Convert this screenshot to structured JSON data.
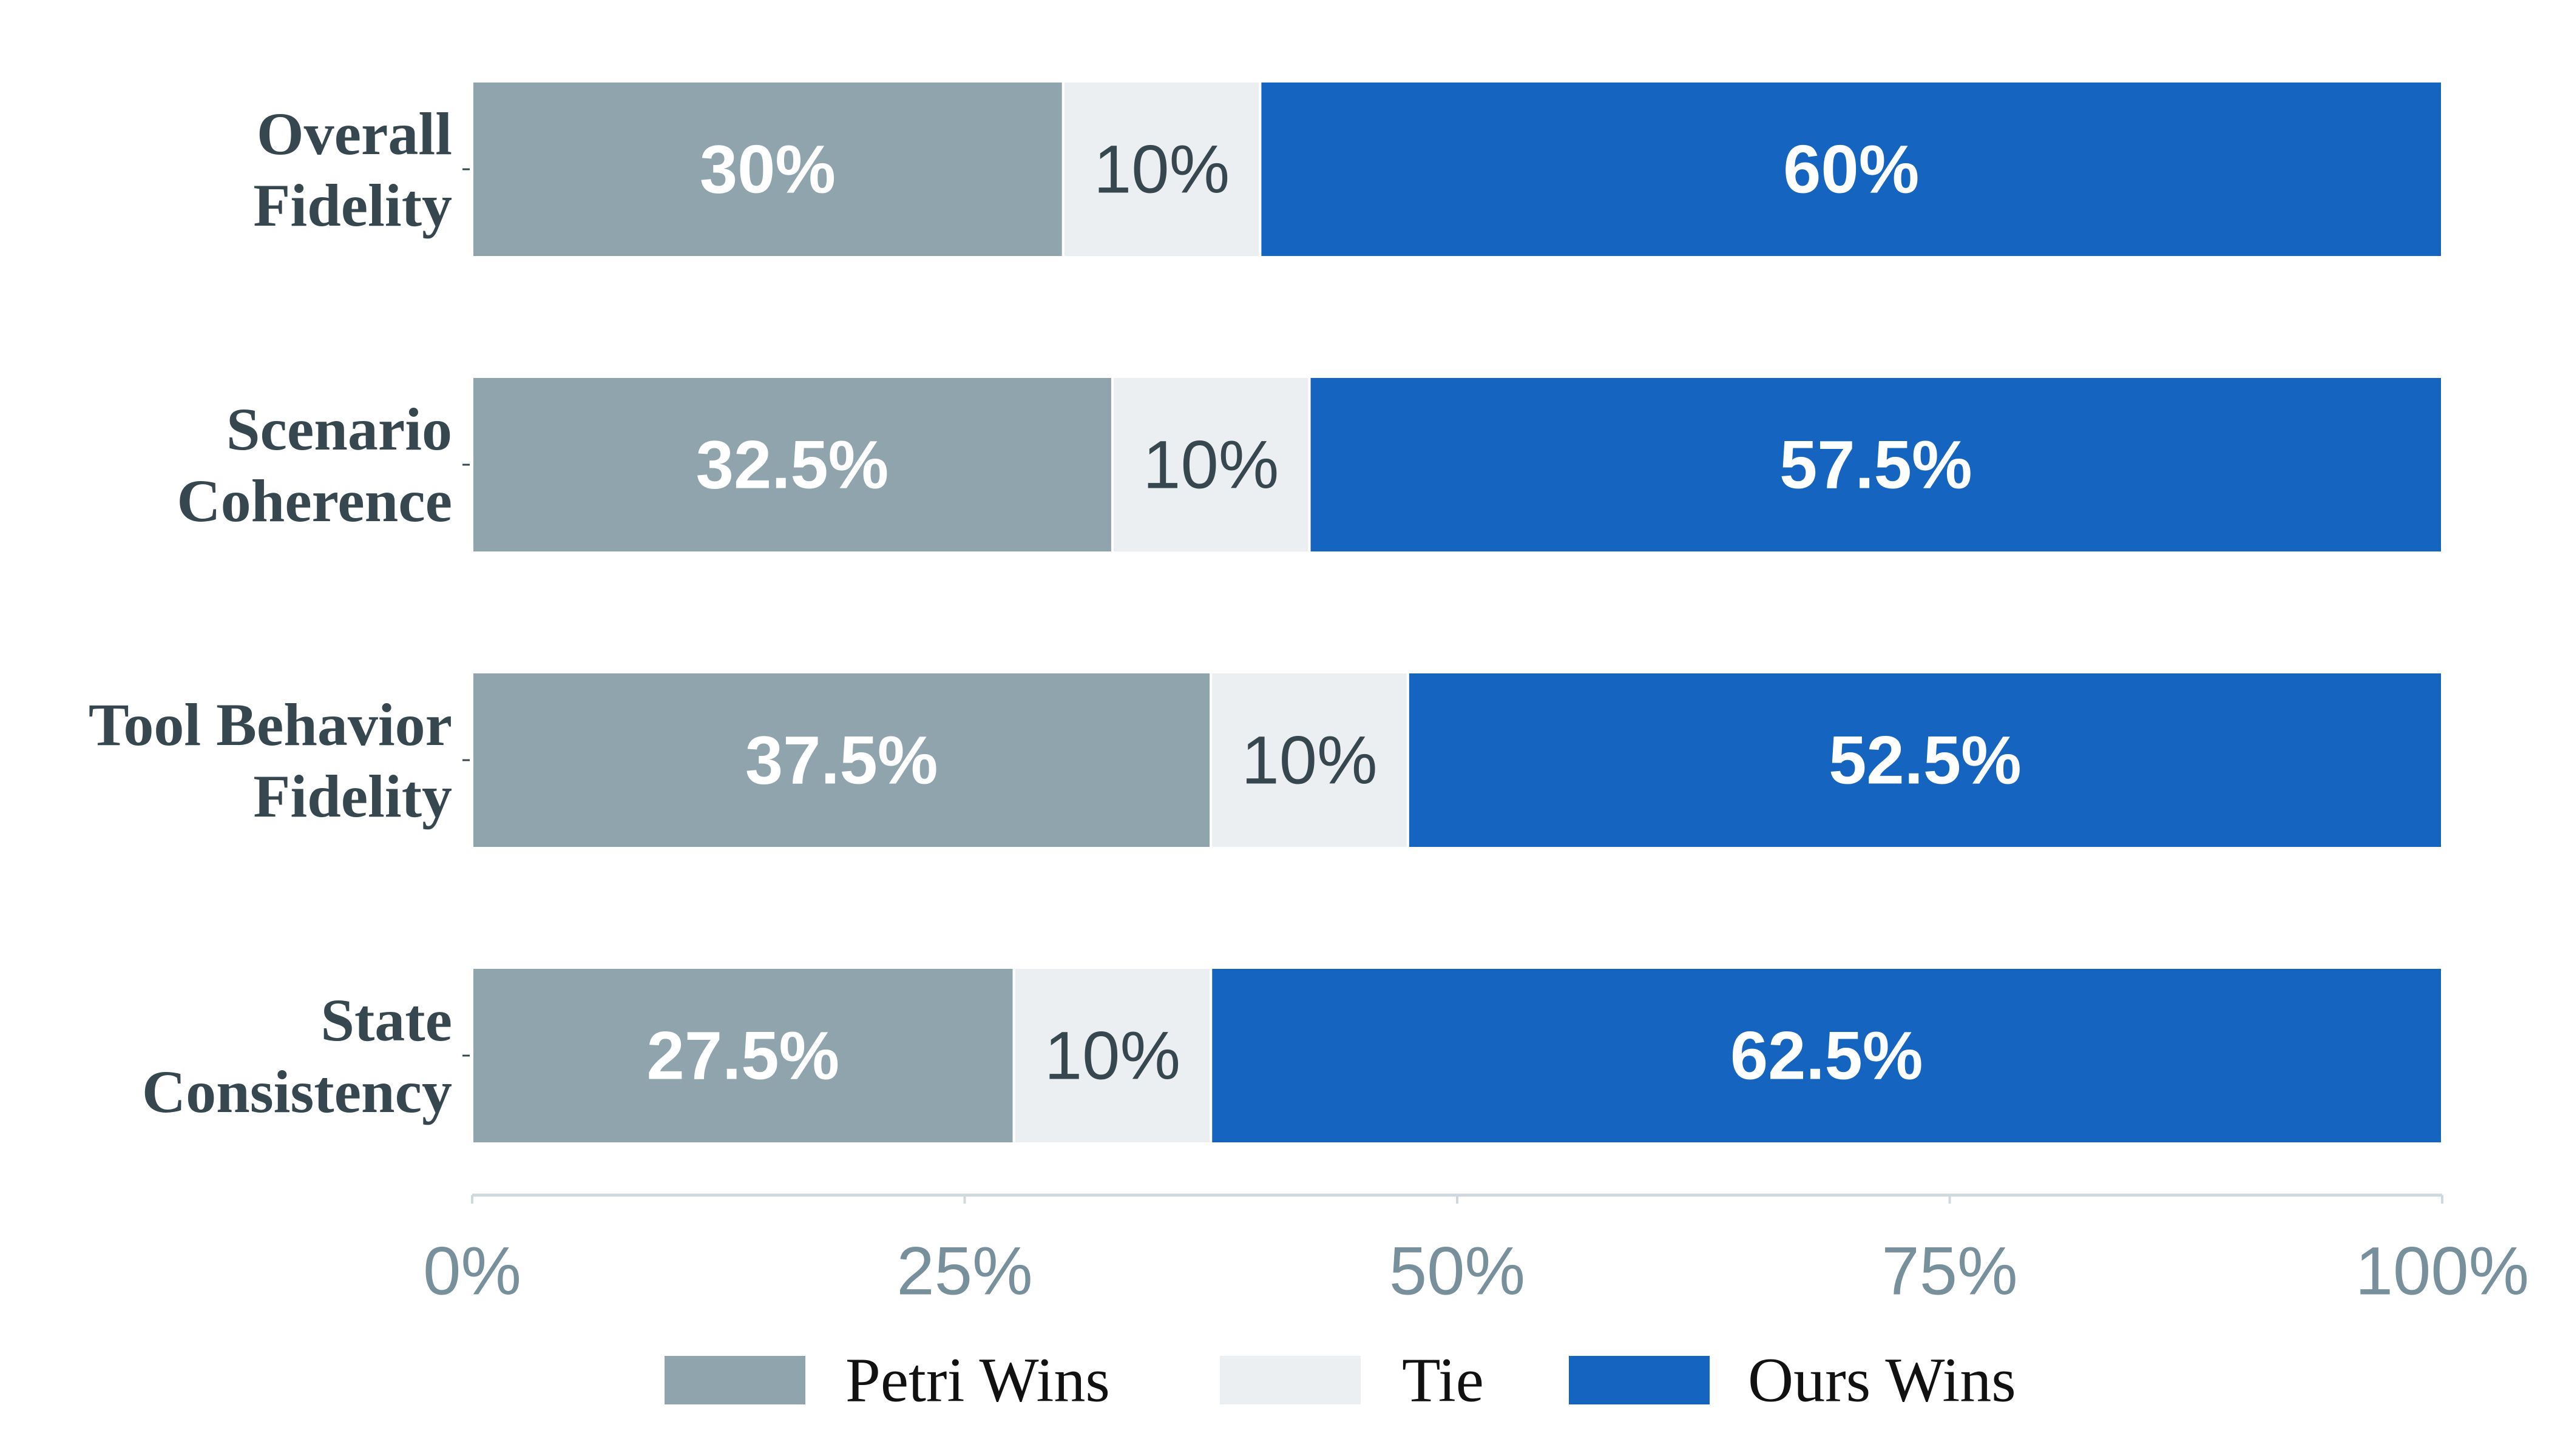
{
  "chart_data": {
    "type": "bar",
    "orientation": "horizontal",
    "stacked": true,
    "categories": [
      [
        "Overall",
        "Fidelity"
      ],
      [
        "Scenario",
        "Coherence"
      ],
      [
        "Tool Behavior",
        "Fidelity"
      ],
      [
        "State",
        "Consistency"
      ]
    ],
    "series": [
      {
        "name": "Petri Wins",
        "color": "#90A4AE",
        "label_color": "#ffffff",
        "label_weight": "bold",
        "values": [
          30,
          32.5,
          37.5,
          27.5
        ],
        "labels": [
          "30%",
          "32.5%",
          "37.5%",
          "27.5%"
        ]
      },
      {
        "name": "Tie",
        "color": "#ECEFF1",
        "label_color": "#37474F",
        "label_weight": "normal",
        "values": [
          10,
          10,
          10,
          10
        ],
        "labels": [
          "10%",
          "10%",
          "10%",
          "10%"
        ]
      },
      {
        "name": "Ours Wins",
        "color": "#1565C0",
        "label_color": "#ffffff",
        "label_weight": "bold",
        "values": [
          60,
          57.5,
          52.5,
          62.5
        ],
        "labels": [
          "60%",
          "57.5%",
          "52.5%",
          "62.5%"
        ]
      }
    ],
    "xlim": [
      0,
      100
    ],
    "xticks": [
      0,
      25,
      50,
      75,
      100
    ],
    "xtick_labels": [
      "0%",
      "25%",
      "50%",
      "75%",
      "100%"
    ],
    "grid": false,
    "legend_position": "bottom-center",
    "colors": {
      "category_text": "#37474F",
      "tick_text": "#78909C",
      "axis_line": "#CFD8DC"
    }
  }
}
